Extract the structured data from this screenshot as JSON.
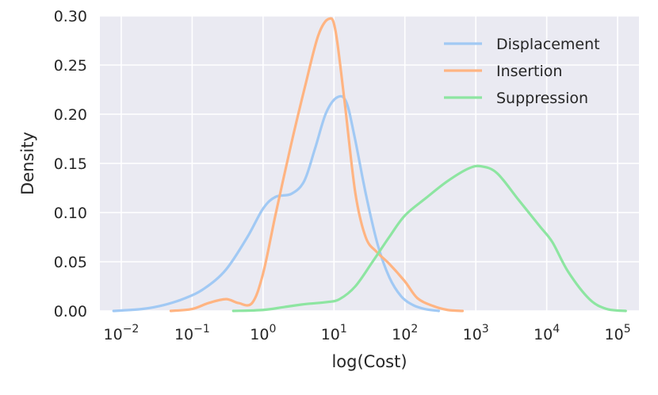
{
  "chart_data": {
    "type": "line",
    "xlabel": "log(Cost)",
    "ylabel": "Density",
    "xscale": "log",
    "xlim": [
      0.005,
      200000
    ],
    "ylim": [
      0,
      0.3
    ],
    "xticks": [
      0.01,
      0.1,
      1,
      10,
      100,
      1000,
      10000,
      100000
    ],
    "xtick_labels": [
      {
        "base": "10",
        "exp": "−2"
      },
      {
        "base": "10",
        "exp": "−1"
      },
      {
        "base": "10",
        "exp": "0"
      },
      {
        "base": "10",
        "exp": "1"
      },
      {
        "base": "10",
        "exp": "2"
      },
      {
        "base": "10",
        "exp": "3"
      },
      {
        "base": "10",
        "exp": "4"
      },
      {
        "base": "10",
        "exp": "5"
      }
    ],
    "yticks": [
      "0.00",
      "0.05",
      "0.10",
      "0.15",
      "0.20",
      "0.25",
      "0.30"
    ],
    "grid": true,
    "legend_position": "top-right",
    "series": [
      {
        "name": "Displacement",
        "color": "#a1c9f4",
        "x": [
          0.0078,
          0.02,
          0.04,
          0.08,
          0.15,
          0.3,
          0.6,
          1.0,
          1.5,
          2.5,
          3.8,
          5.4,
          7.7,
          11.0,
          14.8,
          19.4,
          28.3,
          41.5,
          60.5,
          88.4,
          130,
          190,
          300
        ],
        "y": [
          0,
          0.002,
          0.006,
          0.013,
          0.023,
          0.042,
          0.075,
          0.104,
          0.116,
          0.119,
          0.132,
          0.165,
          0.201,
          0.217,
          0.213,
          0.178,
          0.118,
          0.067,
          0.034,
          0.015,
          0.006,
          0.002,
          0
        ]
      },
      {
        "name": "Insertion",
        "color": "#ffb482",
        "x": [
          0.05,
          0.1,
          0.17,
          0.3,
          0.45,
          0.7,
          1.0,
          1.5,
          2.5,
          3.9,
          6.0,
          8.5,
          10.5,
          14.0,
          20.0,
          28.0,
          40.0,
          60.0,
          100,
          150,
          250,
          400,
          650
        ],
        "y": [
          0,
          0.002,
          0.008,
          0.012,
          0.008,
          0.008,
          0.038,
          0.098,
          0.17,
          0.228,
          0.28,
          0.297,
          0.285,
          0.215,
          0.12,
          0.075,
          0.06,
          0.048,
          0.03,
          0.013,
          0.005,
          0.001,
          0
        ]
      },
      {
        "name": "Suppression",
        "color": "#8de5a1",
        "x": [
          0.38,
          1.0,
          2.0,
          4.0,
          8.0,
          12.0,
          20.0,
          35.0,
          60.0,
          100,
          200,
          400,
          800,
          1200,
          2000,
          4000,
          8000,
          12000,
          20000,
          40000,
          70000,
          130000
        ],
        "y": [
          0,
          0.001,
          0.004,
          0.007,
          0.009,
          0.012,
          0.025,
          0.05,
          0.075,
          0.097,
          0.115,
          0.132,
          0.145,
          0.147,
          0.14,
          0.113,
          0.086,
          0.07,
          0.04,
          0.012,
          0.002,
          0
        ]
      }
    ]
  }
}
